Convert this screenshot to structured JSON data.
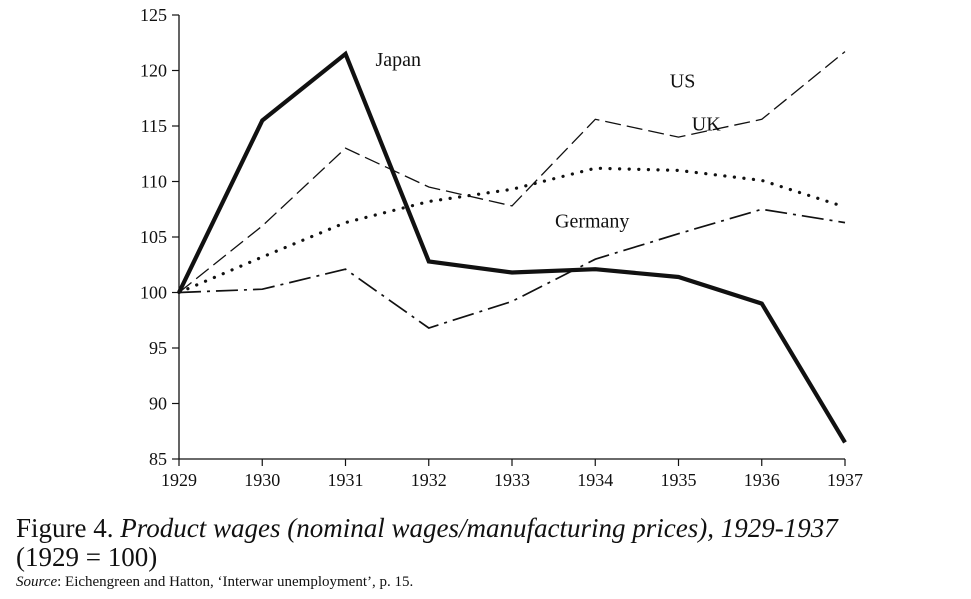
{
  "chart_data": {
    "type": "line",
    "x": [
      "1929",
      "1930",
      "1931",
      "1932",
      "1933",
      "1934",
      "1935",
      "1936",
      "1937"
    ],
    "ylim": [
      85,
      125
    ],
    "y_ticks": [
      "85",
      "90",
      "95",
      "100",
      "105",
      "110",
      "115",
      "120",
      "125"
    ],
    "grid": false,
    "legend": "inline labels",
    "series": [
      {
        "name": "Japan",
        "style": "solid-thick",
        "color": "#111111",
        "values": [
          100,
          115.5,
          121.5,
          102.8,
          101.8,
          102.1,
          101.4,
          99,
          86.5
        ]
      },
      {
        "name": "US",
        "style": "dashed",
        "color": "#111111",
        "values": [
          100,
          106,
          113,
          109.5,
          107.8,
          115.6,
          114,
          115.6,
          121.7
        ]
      },
      {
        "name": "UK",
        "style": "dotted",
        "color": "#111111",
        "values": [
          100,
          103.2,
          106.3,
          108.2,
          109.3,
          111.2,
          111,
          110.1,
          107.7
        ]
      },
      {
        "name": "Germany",
        "style": "dash-dot",
        "color": "#111111",
        "values": [
          100,
          100.3,
          102.1,
          96.8,
          99.2,
          103,
          105.3,
          107.5,
          106.3
        ]
      }
    ]
  },
  "caption": {
    "figure_label": "Figure 4.",
    "title_italic": "Product wages (nominal wages/manufacturing prices),",
    "years": "1929-1937",
    "base_note": "(1929 = 100)",
    "source_label": "Source",
    "source_text": ": Eichengreen and Hatton, ‘Interwar unemployment’, p. 15."
  }
}
